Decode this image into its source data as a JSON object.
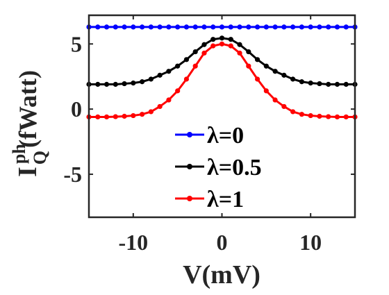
{
  "chart_data": {
    "type": "line",
    "xlabel": "V(mV)",
    "ylabel": {
      "base": "I",
      "sup": "ph",
      "sub": "Q",
      "unit": "(fWatt)"
    },
    "xlim": [
      -15,
      15
    ],
    "ylim": [
      -8.3,
      7.2
    ],
    "xticks": [
      -10,
      0,
      10
    ],
    "yticks": [
      -5,
      0,
      5
    ],
    "grid": false,
    "legend_position": "bottom-right",
    "x": [
      -15,
      -14,
      -13,
      -12,
      -11,
      -10,
      -9,
      -8,
      -7,
      -6,
      -5,
      -4,
      -3,
      -2,
      -1,
      0,
      1,
      2,
      3,
      4,
      5,
      6,
      7,
      8,
      9,
      10,
      11,
      12,
      13,
      14,
      15
    ],
    "series": [
      {
        "name": "λ=0",
        "color": "#0000ff",
        "values": [
          6.3,
          6.3,
          6.3,
          6.3,
          6.3,
          6.3,
          6.3,
          6.3,
          6.3,
          6.3,
          6.3,
          6.3,
          6.3,
          6.3,
          6.3,
          6.3,
          6.3,
          6.3,
          6.3,
          6.3,
          6.3,
          6.3,
          6.3,
          6.3,
          6.3,
          6.3,
          6.3,
          6.3,
          6.3,
          6.3,
          6.3
        ]
      },
      {
        "name": "λ=0.5",
        "color": "#000000",
        "values": [
          1.9,
          1.9,
          1.9,
          1.9,
          1.95,
          2.0,
          2.1,
          2.3,
          2.6,
          2.9,
          3.3,
          3.8,
          4.4,
          4.95,
          5.35,
          5.45,
          5.35,
          4.95,
          4.4,
          3.8,
          3.3,
          2.9,
          2.6,
          2.3,
          2.1,
          2.0,
          1.95,
          1.9,
          1.9,
          1.9,
          1.9
        ]
      },
      {
        "name": "λ=1",
        "color": "#ff0000",
        "values": [
          -0.6,
          -0.6,
          -0.6,
          -0.58,
          -0.55,
          -0.5,
          -0.4,
          -0.2,
          0.2,
          0.7,
          1.4,
          2.3,
          3.3,
          4.3,
          4.85,
          5.0,
          4.85,
          4.3,
          3.3,
          2.3,
          1.4,
          0.7,
          0.2,
          -0.2,
          -0.4,
          -0.5,
          -0.55,
          -0.58,
          -0.6,
          -0.6,
          -0.6
        ]
      }
    ]
  }
}
